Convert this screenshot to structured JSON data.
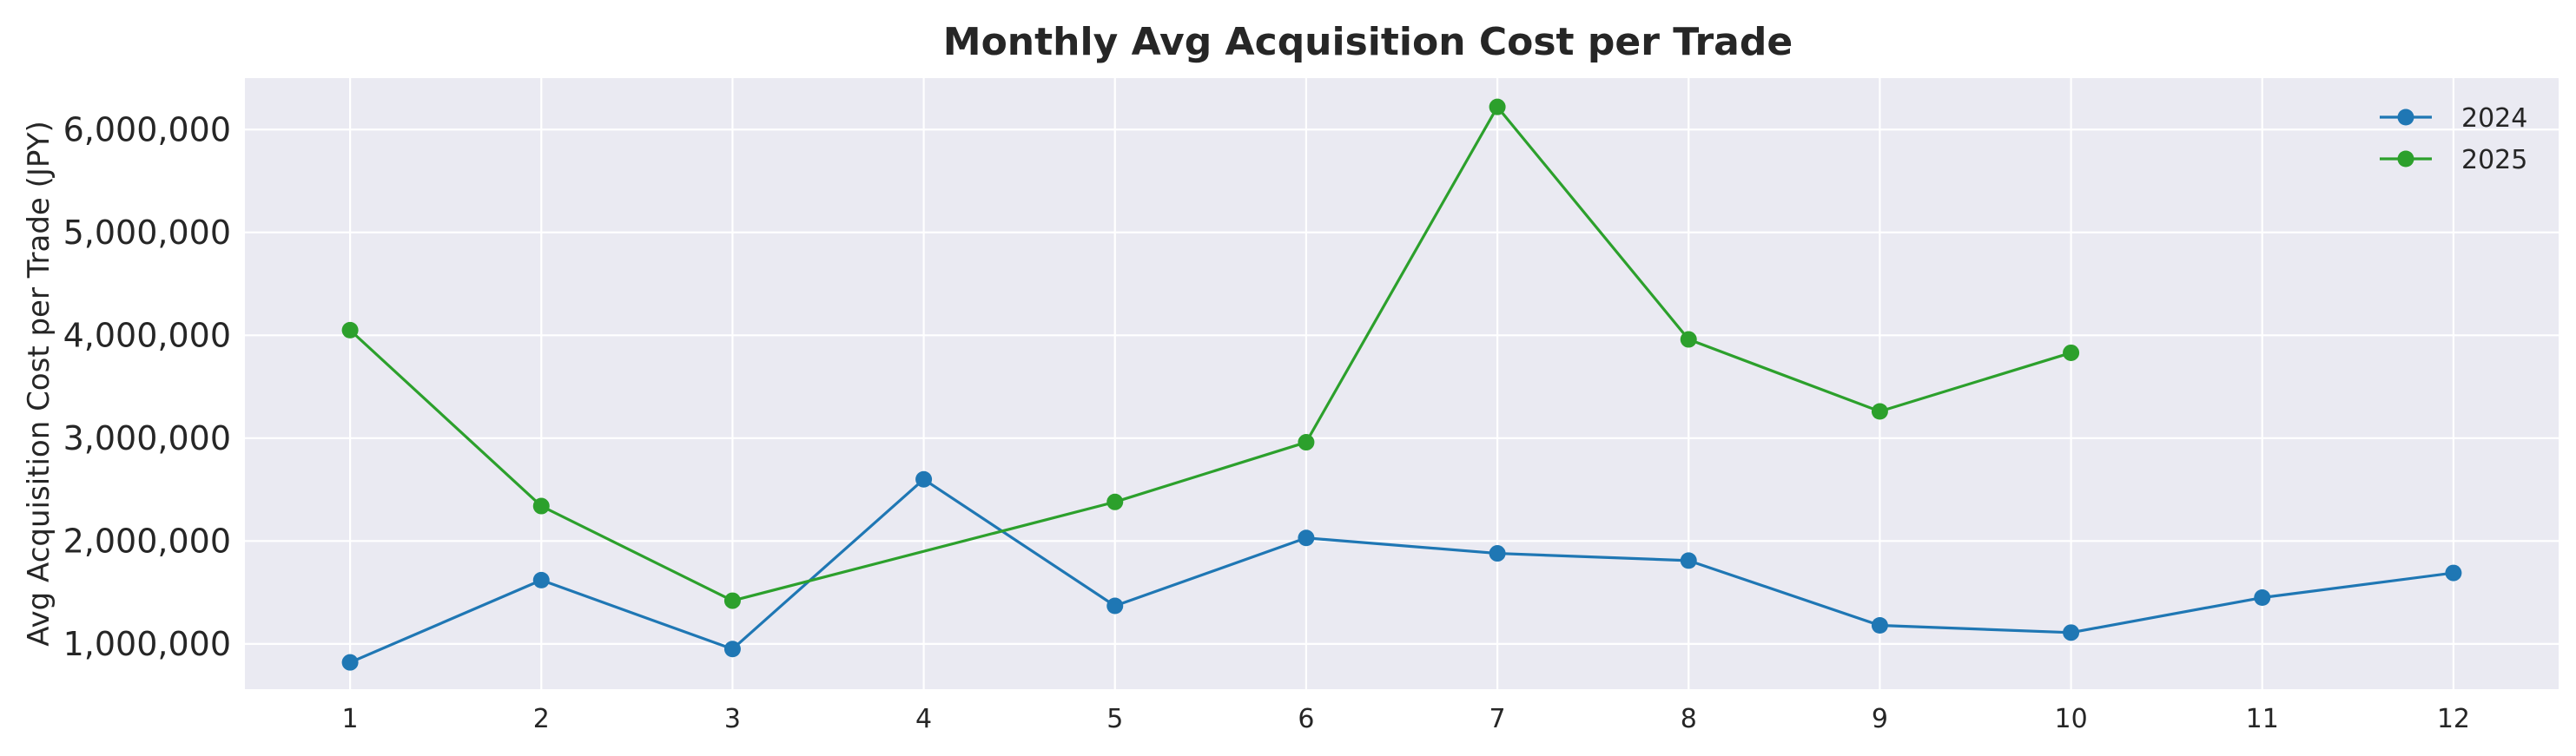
{
  "chart_data": {
    "type": "line",
    "title": "Monthly Avg Acquisition Cost per Trade",
    "xlabel": "",
    "ylabel": "Avg Acquisition Cost per Trade (JPY)",
    "x": [
      1,
      2,
      3,
      4,
      5,
      6,
      7,
      8,
      9,
      10,
      11,
      12
    ],
    "x_tick_labels": [
      "1",
      "2",
      "3",
      "4",
      "5",
      "6",
      "7",
      "8",
      "9",
      "10",
      "11",
      "12"
    ],
    "y_ticks": [
      1000000,
      2000000,
      3000000,
      4000000,
      5000000,
      6000000
    ],
    "y_tick_labels": [
      "1,000,000",
      "2,000,000",
      "3,000,000",
      "4,000,000",
      "5,000,000",
      "6,000,000"
    ],
    "xlim": [
      0.45,
      12.55
    ],
    "ylim": [
      560000,
      6500000
    ],
    "grid": true,
    "legend_position": "top-right",
    "background": "#eaeaf2",
    "series": [
      {
        "name": "2024",
        "color": "#1f77b4",
        "x": [
          1,
          2,
          3,
          4,
          5,
          6,
          7,
          8,
          9,
          10,
          11,
          12
        ],
        "values": [
          820000,
          1620000,
          950000,
          2600000,
          1370000,
          2030000,
          1880000,
          1810000,
          1180000,
          1110000,
          1450000,
          1690000
        ]
      },
      {
        "name": "2025",
        "color": "#2ca02c",
        "x": [
          1,
          2,
          3,
          5,
          6,
          7,
          8,
          9,
          10
        ],
        "values": [
          4050000,
          2340000,
          1420000,
          2380000,
          2960000,
          6220000,
          3960000,
          3260000,
          3830000
        ]
      }
    ]
  }
}
